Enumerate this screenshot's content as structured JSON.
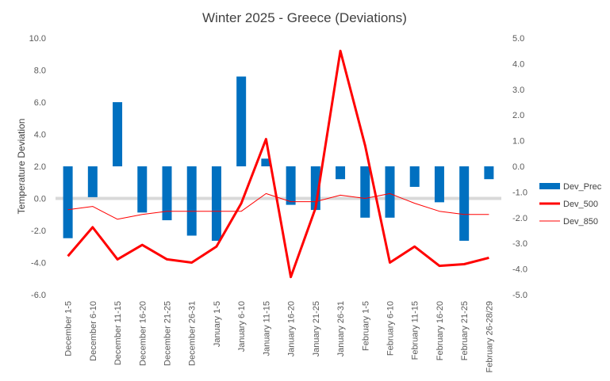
{
  "chart_data": {
    "type": "bar",
    "title": "Winter 2025 - Greece (Deviations)",
    "ylabel": "Temperature  Deviation",
    "categories": [
      "December 1-5",
      "December 6-10",
      "December 11-15",
      "December 16-20",
      "December 21-25",
      "December 26-31",
      "January 1-5",
      "January 6-10",
      "January 11-15",
      "January 16-20",
      "January 21-25",
      "January 26-31",
      "February 1-5",
      "February 6-10",
      "February 11-15",
      "February 16-20",
      "February 21-25",
      "February 26-28/29"
    ],
    "left_axis": {
      "min": -6,
      "max": 10,
      "step": 2,
      "tick_labels": [
        "-6.0",
        "-4.0",
        "-2.0",
        "0.0",
        "2.0",
        "4.0",
        "6.0",
        "8.0",
        "10.0"
      ]
    },
    "right_axis": {
      "min": -5,
      "max": 5,
      "step": 1,
      "tick_labels": [
        "-5.0",
        "-4.0",
        "-3.0",
        "-2.0",
        "-1.0",
        "0.0",
        "1.0",
        "2.0",
        "3.0",
        "4.0",
        "5.0"
      ]
    },
    "series": [
      {
        "name": "Dev_Prec",
        "type": "bar",
        "axis": "right",
        "color": "#0070c0",
        "values": [
          -2.8,
          -1.2,
          2.5,
          -1.8,
          -2.1,
          -2.7,
          -2.9,
          3.5,
          0.3,
          -1.5,
          -1.7,
          -0.5,
          -2.0,
          -2.0,
          -0.8,
          -1.4,
          -2.9,
          -0.5
        ]
      },
      {
        "name": "Dev_500",
        "type": "line",
        "axis": "left",
        "color": "#ff0000",
        "width": 3,
        "values": [
          -3.6,
          -1.8,
          -3.8,
          -2.9,
          -3.8,
          -4.0,
          -3.0,
          -0.3,
          3.7,
          -4.9,
          -0.6,
          9.2,
          3.3,
          -4.0,
          -3.0,
          -4.2,
          -4.1,
          -3.7
        ]
      },
      {
        "name": "Dev_850",
        "type": "line",
        "axis": "left",
        "color": "#ff0000",
        "width": 1,
        "values": [
          -0.7,
          -0.5,
          -1.3,
          -1.0,
          -0.8,
          -0.8,
          -0.8,
          -0.8,
          0.3,
          -0.2,
          -0.2,
          0.2,
          0.0,
          0.3,
          -0.3,
          -0.8,
          -1.0,
          -1.0
        ]
      }
    ],
    "zero_line_color": "#d9d9d9",
    "grid": false,
    "legend_position": "right"
  }
}
